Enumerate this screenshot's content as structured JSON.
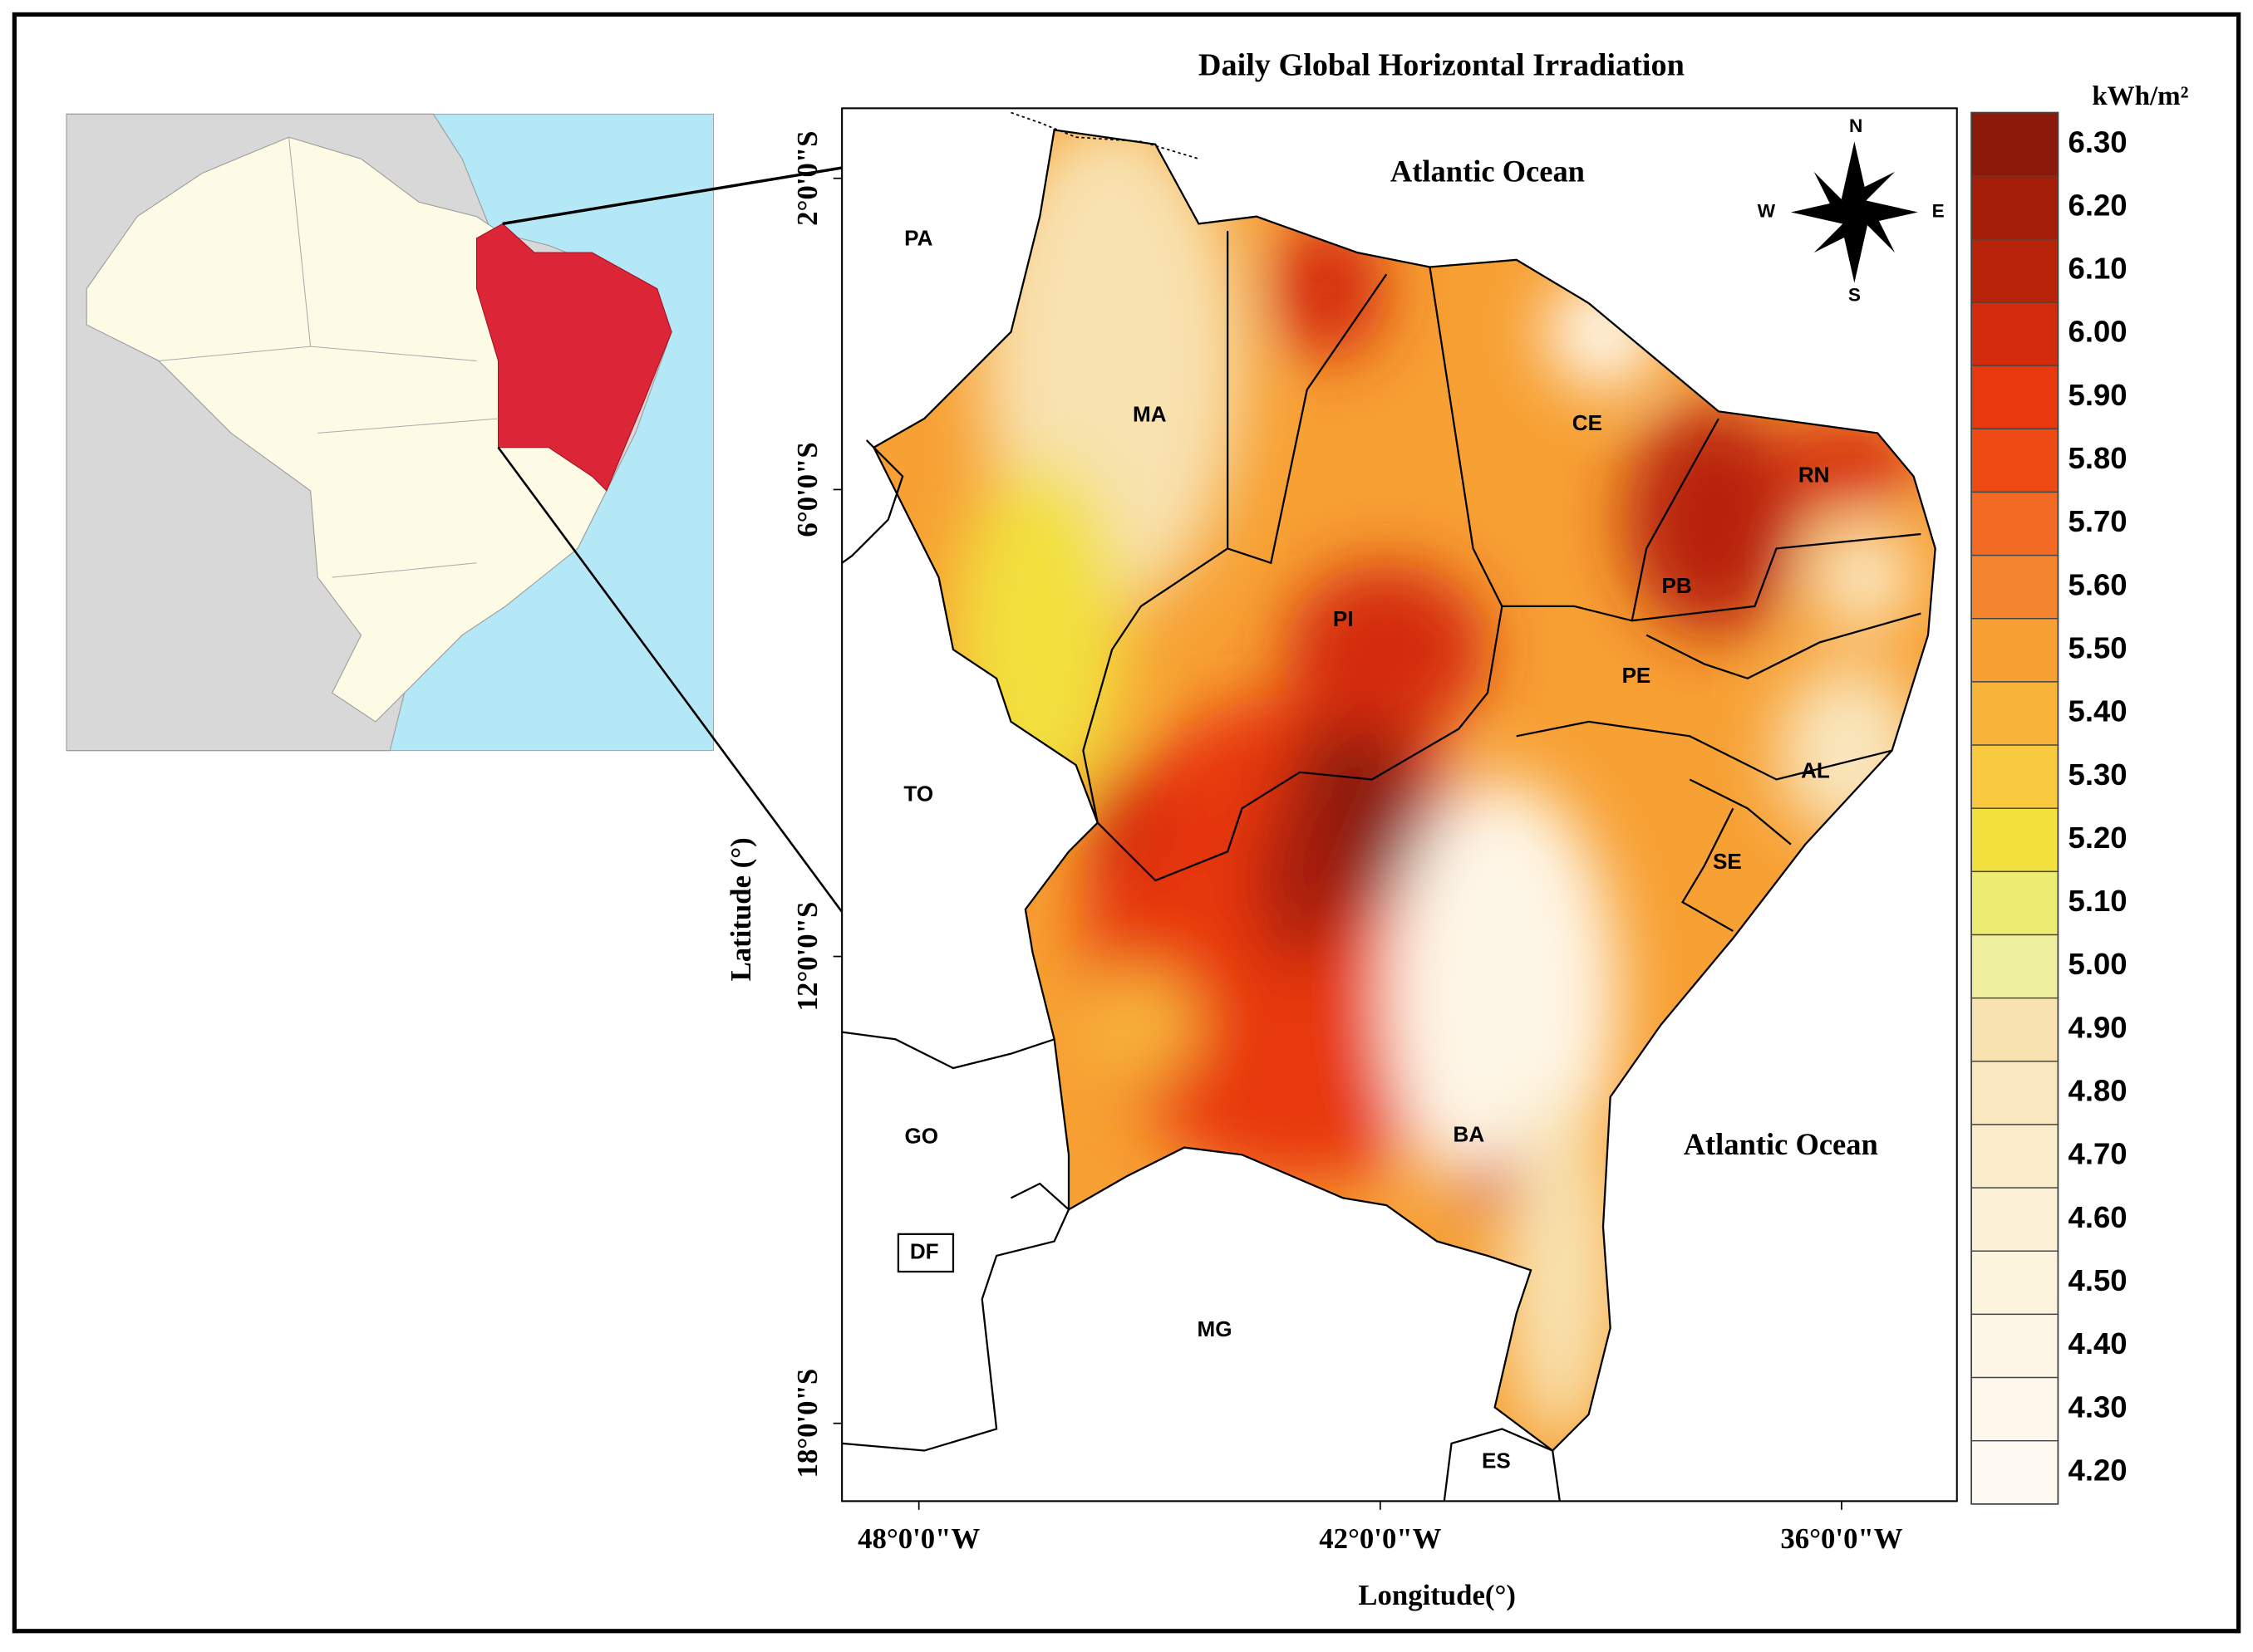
{
  "title": "Daily Global Horizontal Irradiation",
  "axes": {
    "xlabel": "Longitude(°)",
    "ylabel": "Latitude (°)",
    "xlim": [
      -49.0,
      -34.5
    ],
    "ylim": [
      -1.1,
      -19.0
    ],
    "xticks": [
      {
        "value": -48,
        "label": "48°0'0\"W"
      },
      {
        "value": -42,
        "label": "42°0'0\"W"
      },
      {
        "value": -36,
        "label": "36°0'0\"W"
      }
    ],
    "yticks": [
      {
        "value": -2,
        "label": "2°0'0\"S"
      },
      {
        "value": -6,
        "label": "6°0'0\"S"
      },
      {
        "value": -12,
        "label": "12°0'0\"S"
      },
      {
        "value": -18,
        "label": "18°0'0\"S"
      }
    ]
  },
  "colorbar": {
    "unit": "kWh/m²",
    "levels": [
      {
        "value": 6.3,
        "label": "6.30"
      },
      {
        "value": 6.2,
        "label": "6.20"
      },
      {
        "value": 6.1,
        "label": "6.10"
      },
      {
        "value": 6.0,
        "label": "6.00"
      },
      {
        "value": 5.9,
        "label": "5.90"
      },
      {
        "value": 5.8,
        "label": "5.80"
      },
      {
        "value": 5.7,
        "label": "5.70"
      },
      {
        "value": 5.6,
        "label": "5.60"
      },
      {
        "value": 5.5,
        "label": "5.50"
      },
      {
        "value": 5.4,
        "label": "5.40"
      },
      {
        "value": 5.3,
        "label": "5.30"
      },
      {
        "value": 5.2,
        "label": "5.20"
      },
      {
        "value": 5.1,
        "label": "5.10"
      },
      {
        "value": 5.0,
        "label": "5.00"
      },
      {
        "value": 4.9,
        "label": "4.90"
      },
      {
        "value": 4.8,
        "label": "4.80"
      },
      {
        "value": 4.7,
        "label": "4.70"
      },
      {
        "value": 4.6,
        "label": "4.60"
      },
      {
        "value": 4.5,
        "label": "4.50"
      },
      {
        "value": 4.4,
        "label": "4.40"
      },
      {
        "value": 4.3,
        "label": "4.30"
      },
      {
        "value": 4.2,
        "label": "4.20"
      }
    ],
    "colors": [
      "#8b1a0a",
      "#a31d08",
      "#b8240a",
      "#d42b0c",
      "#e8380e",
      "#f04a14",
      "#f26a24",
      "#f5842e",
      "#f7a033",
      "#f8b43a",
      "#f9c93f",
      "#f2e03c",
      "#eceb72",
      "#eef0a0",
      "#f8e2b0",
      "#f9e7c0",
      "#fbedcc",
      "#fcf0d6",
      "#fdf4de",
      "#fef6e6",
      "#fef8ec",
      "#fefaf2"
    ]
  },
  "oceans": [
    "Atlantic Ocean",
    "Atlantic Ocean"
  ],
  "states": [
    "PA",
    "MA",
    "CE",
    "RN",
    "PB",
    "PI",
    "PE",
    "TO",
    "AL",
    "SE",
    "GO",
    "BA",
    "DF",
    "MG",
    "ES"
  ],
  "compass": {
    "n": "N",
    "s": "S",
    "e": "E",
    "w": "W"
  }
}
